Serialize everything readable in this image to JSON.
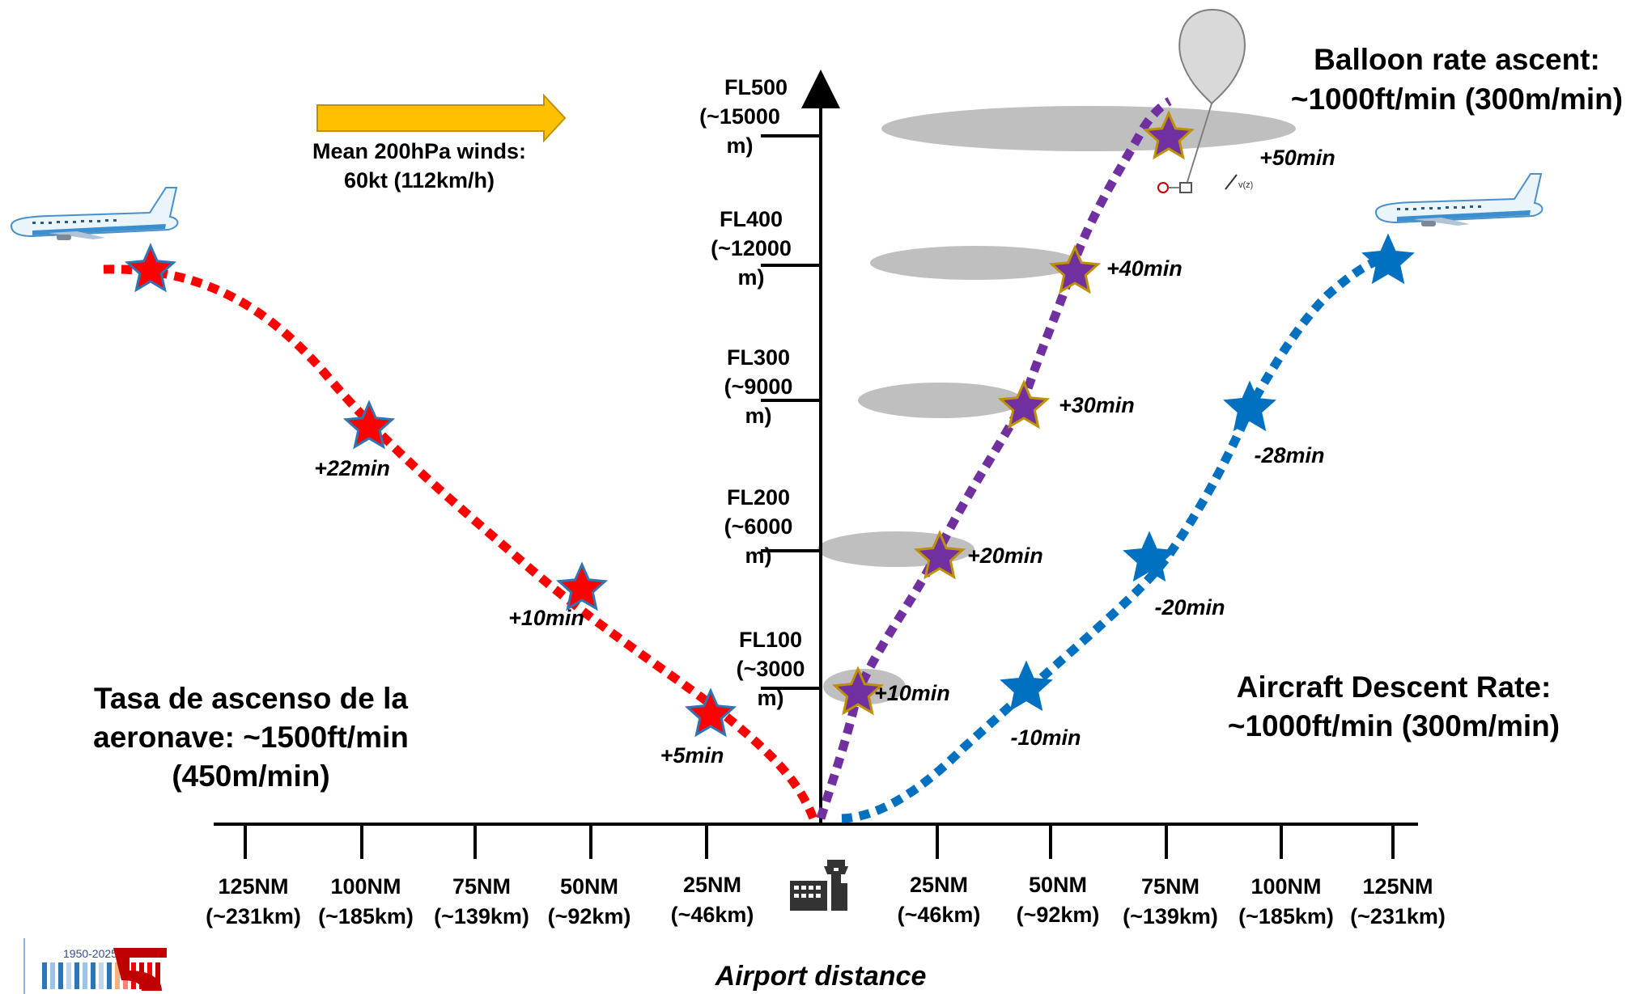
{
  "wind": {
    "line1": "Mean 200hPa winds:",
    "line2": "60kt (112km/h)"
  },
  "balloon": {
    "line1": "Balloon rate ascent:",
    "line2": "~1000ft/min (300m/min)"
  },
  "climb": {
    "line1": "Tasa de ascenso de la",
    "line2": "aeronave: ~1500ft/min",
    "line3": "(450m/min)"
  },
  "descent": {
    "line1": "Aircraft Descent Rate:",
    "line2": "~1000ft/min (300m/min)"
  },
  "levels": [
    {
      "fl": "FL500",
      "alt1": "(~15000",
      "alt2": "m)"
    },
    {
      "fl": "FL400",
      "alt1": "(~12000",
      "alt2": "m)"
    },
    {
      "fl": "FL300",
      "alt1": "(~9000",
      "alt2": "m)"
    },
    {
      "fl": "FL200",
      "alt1": "(~6000",
      "alt2": "m)"
    },
    {
      "fl": "FL100",
      "alt1": "(~3000",
      "alt2": "m)"
    }
  ],
  "x_ticks_left": [
    {
      "nm": "125NM",
      "km": "(~231km)"
    },
    {
      "nm": "100NM",
      "km": "(~185km)"
    },
    {
      "nm": "75NM",
      "km": "(~139km)"
    },
    {
      "nm": "50NM",
      "km": "(~92km)"
    },
    {
      "nm": "25NM",
      "km": "(~46km)"
    }
  ],
  "x_ticks_right": [
    {
      "nm": "25NM",
      "km": "(~46km)"
    },
    {
      "nm": "50NM",
      "km": "(~92km)"
    },
    {
      "nm": "75NM",
      "km": "(~139km)"
    },
    {
      "nm": "100NM",
      "km": "(~185km)"
    },
    {
      "nm": "125NM",
      "km": "(~231km)"
    }
  ],
  "x_axis_title": "Airport distance",
  "climb_times": [
    "+22min",
    "+10min",
    "+5min"
  ],
  "balloon_times": [
    "+10min",
    "+20min",
    "+30min",
    "+40min",
    "+50min"
  ],
  "descent_times": [
    "-10min",
    "-20min",
    "-28min"
  ],
  "balloon_small_label": "v(z)",
  "logo_years": "1950-2025",
  "colors": {
    "climb": "#ff0000",
    "balloon": "#7030a0",
    "descent": "#0070c0",
    "arrow": "#ffc000",
    "ellipse": "#bfbfbf"
  }
}
